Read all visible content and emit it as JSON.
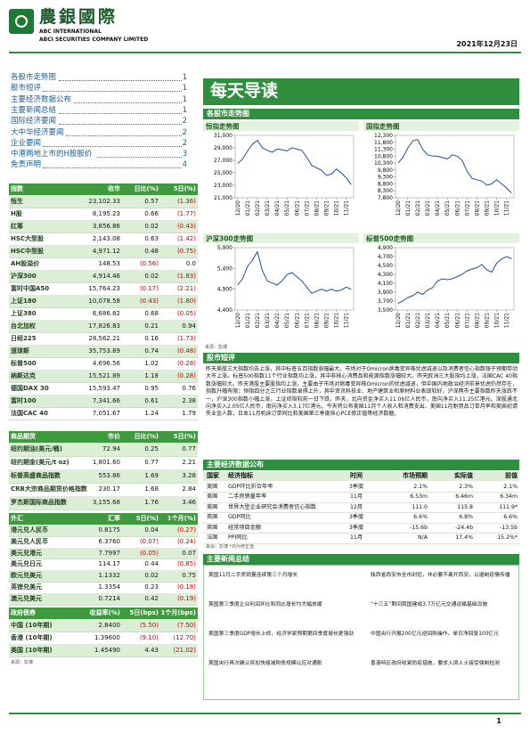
{
  "header": {
    "brand": "農銀國際",
    "brand_en": "ABC INTERNATIONAL",
    "company": "ABCI SECURITIES COMPANY LIMITED",
    "date": "2021年12月23日"
  },
  "toc": [
    {
      "title": "各股市走势图",
      "page": "1"
    },
    {
      "title": "股市短评",
      "page": "1"
    },
    {
      "title": "主要经济数据公布",
      "page": "1"
    },
    {
      "title": "主要新闻总结",
      "page": "1"
    },
    {
      "title": "国际经济要闻",
      "page": "2"
    },
    {
      "title": "大中华经济要闻",
      "page": "2"
    },
    {
      "title": "企业要闻",
      "page": "2"
    },
    {
      "title": "中港两地上市的H股股价",
      "page": "3"
    },
    {
      "title": "免责声明",
      "page": "4"
    }
  ],
  "banner": "每天导读",
  "indices": {
    "columns": [
      "指数",
      "收市",
      "日比(%)",
      "5日(%)"
    ],
    "rows": [
      [
        "恒生",
        "23,102.33",
        "0.57",
        "(1.36)"
      ],
      [
        "H股",
        "8,195.23",
        "0.66",
        "(1.77)"
      ],
      [
        "红筹",
        "3,856.86",
        "0.02",
        "(0.43)"
      ],
      [
        "HSC大型股",
        "2,143.08",
        "0.63",
        "(1.42)"
      ],
      [
        "HSC中型股",
        "4,971.12",
        "0.48",
        "(0.75)"
      ],
      [
        "AH股溢价",
        "148.53",
        "(0.56)",
        "0.0"
      ],
      [
        "沪深300",
        "4,914.46",
        "0.02",
        "(1.83)"
      ],
      [
        "富时中国A50",
        "15,764.23",
        "(0.17)",
        "(2.21)"
      ],
      [
        "上证180",
        "10,078.58",
        "(0.43)",
        "(1.80)"
      ],
      [
        "上证380",
        "6,686.82",
        "0.68",
        "(0.05)"
      ],
      [
        "台北加权",
        "17,826.83",
        "0.21",
        "0.94"
      ],
      [
        "日经225",
        "28,562.21",
        "0.16",
        "(1.73)"
      ],
      [
        "道琼斯",
        "35,753.89",
        "0.74",
        "(0.48)"
      ],
      [
        "标普500",
        "4,696.56",
        "1.02",
        "(0.28)"
      ],
      [
        "纳斯达克",
        "15,521.89",
        "1.18",
        "(0.28)"
      ],
      [
        "德国DAX 30",
        "15,593.47",
        "0.95",
        "0.76"
      ],
      [
        "富时100",
        "7,341.66",
        "0.61",
        "2.38"
      ],
      [
        "法国CAC 40",
        "7,051.67",
        "1.24",
        "1.79"
      ]
    ]
  },
  "commodities": {
    "columns": [
      "商品期货",
      "市价",
      "日比(%)",
      "5日(%)"
    ],
    "rows": [
      [
        "纽约期油(美元/桶)",
        "72.94",
        "0.25",
        "0.77"
      ],
      [
        "纽约期金(美元/t oz)",
        "1,801.60",
        "0.77",
        "2.21"
      ],
      [
        "标普高盛商品指数",
        "553.86",
        "1.69",
        "3.28"
      ],
      [
        "CRB大宗商品期货价格指数",
        "230.17",
        "1.68",
        "2.84"
      ],
      [
        "罗杰斯国际商品指数",
        "3,155.68",
        "1.76",
        "3.46"
      ]
    ]
  },
  "forex": {
    "columns": [
      "外汇",
      "汇率",
      "5日(%)",
      "1个月(%)"
    ],
    "rows": [
      [
        "港元兑人民币",
        "0.8175",
        "0.04",
        "(0.27)"
      ],
      [
        "美元兑人民币",
        "6.3760",
        "(0.07)",
        "(0.24)"
      ],
      [
        "美元兑港元",
        "7.7997",
        "(0.05)",
        "0.07"
      ],
      [
        "美元兑日元",
        "114.17",
        "0.44",
        "(0.85)"
      ],
      [
        "欧元兑美元",
        "1.1332",
        "0.02",
        "0.75"
      ],
      [
        "英镑兑美元",
        "1.3354",
        "0.23",
        "(0.18)"
      ],
      [
        "澳元兑美元",
        "0.7214",
        "0.42",
        "(0.19)"
      ]
    ]
  },
  "bonds": {
    "columns": [
      "政府债券",
      "收益率(%)",
      "5日(bps)",
      "1个月(bps)"
    ],
    "rows": [
      [
        "中国 (10年期)",
        "2.8400",
        "(5.50)",
        "(7.50)"
      ],
      [
        "香港 (10年期)",
        "1.39600",
        "(9.10)",
        "(12.70)"
      ],
      [
        "美国 (10年期)",
        "1.45490",
        "4.43",
        "(21.02)"
      ]
    ]
  },
  "table_source": "来源：彭博",
  "charts_heading": "各股市走势图",
  "chart_source": "来源：彭博",
  "chart_data": [
    {
      "type": "line",
      "title": "恒指走势图",
      "color": "#1f4e9a",
      "categories": [
        "12/20",
        null,
        "01/21",
        null,
        "02/21",
        null,
        "03/21",
        null,
        "04/21",
        null,
        "05/21",
        null,
        "06/21",
        null,
        "07/21",
        null,
        "08/21",
        null,
        "09/21",
        null,
        "10/21",
        null,
        "11/21",
        null
      ],
      "values": [
        26500,
        27200,
        28500,
        29600,
        30200,
        29000,
        28600,
        28300,
        28800,
        28700,
        28500,
        29000,
        28800,
        28600,
        27500,
        26200,
        25800,
        25400,
        24600,
        24800,
        25600,
        25000,
        24200,
        23100
      ],
      "ylim": [
        21000,
        31000
      ],
      "yticks": [
        {
          "value": 21000,
          "label": "21,000"
        },
        {
          "value": 23000,
          "label": "23,000"
        },
        {
          "value": 25000,
          "label": "25,000"
        },
        {
          "value": 27000,
          "label": "27,000"
        },
        {
          "value": 29000,
          "label": "29,000"
        },
        {
          "value": 31000,
          "label": "31,000"
        }
      ]
    },
    {
      "type": "line",
      "title": "国指走势图",
      "color": "#1f4e9a",
      "categories": [
        "12/20",
        null,
        "01/21",
        null,
        "02/21",
        null,
        "03/21",
        null,
        "04/21",
        null,
        "05/21",
        null,
        "06/21",
        null,
        "07/21",
        null,
        "08/21",
        null,
        "09/21",
        null,
        "10/21",
        null,
        "11/21",
        null
      ],
      "values": [
        10300,
        10700,
        11400,
        11900,
        12000,
        11300,
        10900,
        10800,
        10800,
        10700,
        10600,
        10900,
        10800,
        10500,
        9700,
        9200,
        9100,
        9000,
        8700,
        8800,
        9100,
        8800,
        8500,
        8150
      ],
      "ylim": [
        7800,
        12300
      ],
      "yticks": [
        {
          "value": 7800,
          "label": "7,800"
        },
        {
          "value": 8300,
          "label": "8,300"
        },
        {
          "value": 8800,
          "label": "8,800"
        },
        {
          "value": 9300,
          "label": "9,300"
        },
        {
          "value": 9800,
          "label": "9,800"
        },
        {
          "value": 10300,
          "label": "10,300"
        },
        {
          "value": 10800,
          "label": "10,800"
        },
        {
          "value": 11300,
          "label": "11,300"
        },
        {
          "value": 11800,
          "label": "11,800"
        },
        {
          "value": 12300,
          "label": "12,300"
        }
      ]
    },
    {
      "type": "line",
      "title": "沪深300走势图",
      "color": "#1f4e9a",
      "categories": [
        "12/20",
        null,
        "01/21",
        null,
        "02/21",
        null,
        "03/21",
        null,
        "04/21",
        null,
        "05/21",
        null,
        "06/21",
        null,
        "07/21",
        null,
        "08/21",
        null,
        "09/21",
        null,
        "10/21",
        null,
        "11/21",
        null
      ],
      "values": [
        5000,
        5150,
        5450,
        5600,
        5800,
        5350,
        5100,
        5050,
        5000,
        5100,
        5250,
        5300,
        5200,
        5100,
        4950,
        4800,
        4850,
        4900,
        4850,
        4900,
        4850,
        4880,
        4950,
        4900
      ],
      "ylim": [
        4400,
        5900
      ],
      "yticks": [
        {
          "value": 4400,
          "label": "4,400"
        },
        {
          "value": 4900,
          "label": "4,900"
        },
        {
          "value": 5400,
          "label": "5,400"
        },
        {
          "value": 5900,
          "label": "5,900"
        }
      ]
    },
    {
      "type": "line",
      "title": "标普500走势图",
      "color": "#1f4e9a",
      "categories": [
        "12/20",
        null,
        "01/21",
        null,
        "02/21",
        null,
        "03/21",
        null,
        "04/21",
        null,
        "05/21",
        null,
        "06/21",
        null,
        "07/21",
        null,
        "08/21",
        null,
        "09/21",
        null,
        "10/21",
        null,
        "11/21",
        null
      ],
      "values": [
        3650,
        3700,
        3780,
        3820,
        3900,
        3850,
        3950,
        4000,
        4150,
        4200,
        4180,
        4200,
        4250,
        4300,
        4380,
        4420,
        4450,
        4520,
        4400,
        4350,
        4550,
        4650,
        4700,
        4650
      ],
      "ylim": [
        3500,
        4900
      ],
      "yticks": [
        {
          "value": 3500,
          "label": "3,500"
        },
        {
          "value": 3700,
          "label": "3,700"
        },
        {
          "value": 3900,
          "label": "3,900"
        },
        {
          "value": 4100,
          "label": "4,100"
        },
        {
          "value": 4300,
          "label": "4,300"
        },
        {
          "value": 4500,
          "label": "4,500"
        },
        {
          "value": 4700,
          "label": "4,700"
        },
        {
          "value": 4900,
          "label": "4,900"
        }
      ]
    }
  ],
  "commentary": {
    "heading": "股市短评",
    "text": "昨天美股三大指数均告上涨，其中标普五百指数涨幅最大。市场对于Omicron病毒变异株忧虑减退以及消费者信心指数强于预期带动大市上涨。标普500指数11个行业指数均上涨，其中非核心消费品和能源指数涨幅较大。昨天欧洲三大股指均上涨，法国CAC 40指数涨幅较大。昨天港股主要股指均上涨，主要由于市场对病毒变异株Omicron的忧虑减退，但中国内地政治经济前景忧虑仍然存在，指数升幅有限；恒指四分之三行业指数录得上升，其中资讯科技业、地产建筑业和原材料业表现较好。沪深两市主要指数昨天涨跌不一，沪深300指数小幅上涨，上证综指较前一日下跌。昨天，北向资金净买入11.06亿人民币，南向净买入11.25亿港元。深股通北向净买入2.05亿人民币，南向净买入3.17亿港元。今天将公布美国11月个人收入和消费支出、美国11月耐用品订单月率和美国初请失业金人数，日本11月机床订单同比和美国第三季度核心PCE修正值等经济数据。"
  },
  "econ": {
    "heading": "主要经济数据公布",
    "columns": [
      "国家",
      "经济指标",
      "时间",
      "市场预期",
      "实际值",
      "前值"
    ],
    "rows": [
      [
        "美国",
        "GDP环比折合年率",
        "3季度",
        "2.1%",
        "2.3%",
        "2.1%"
      ],
      [
        "美国",
        "二手房销量年率",
        "11月",
        "6.53m",
        "6.46m",
        "6.34m"
      ],
      [
        "美国",
        "世界大型企业研究会消费者信心指数",
        "12月",
        "111.0",
        "115.8",
        "111.9*"
      ],
      [
        "英国",
        "GDP同比",
        "3季度",
        "6.6%",
        "6.8%",
        "6.6%"
      ],
      [
        "英国",
        "经常项目金额",
        "3季度",
        "-15.6b",
        "-24.4b",
        "-13.5b"
      ],
      [
        "法国",
        "PPI同比",
        "11月",
        "N/A",
        "17.4%",
        "15.2%*"
      ]
    ],
    "note": "来源：彭博    *均为修正值"
  },
  "news": {
    "heading": "主要新闻总结",
    "left": [
      "美国11月二手房销量连续第三个月增长",
      "美国第三季度企业利润环比和同比增长均大幅放缓",
      "美国第三季度GDP增长上修，经济学家预期第四季度增长更强劲",
      "美国央行再次确认将加快缩减购债规模以应对通胀"
    ],
    "right": [
      "陕西省西安市全市封控，非必要不离开西安，以遏制疫情传播",
      "“十三五”期间我国建成3.7万亿元交通运输基础设施",
      "中国央行开展200亿元逆回购操作，单日净回笼100亿元",
      "香港特区政府收紧防疫措施，要求入境人士接受强制检测"
    ]
  },
  "page_number": "1"
}
